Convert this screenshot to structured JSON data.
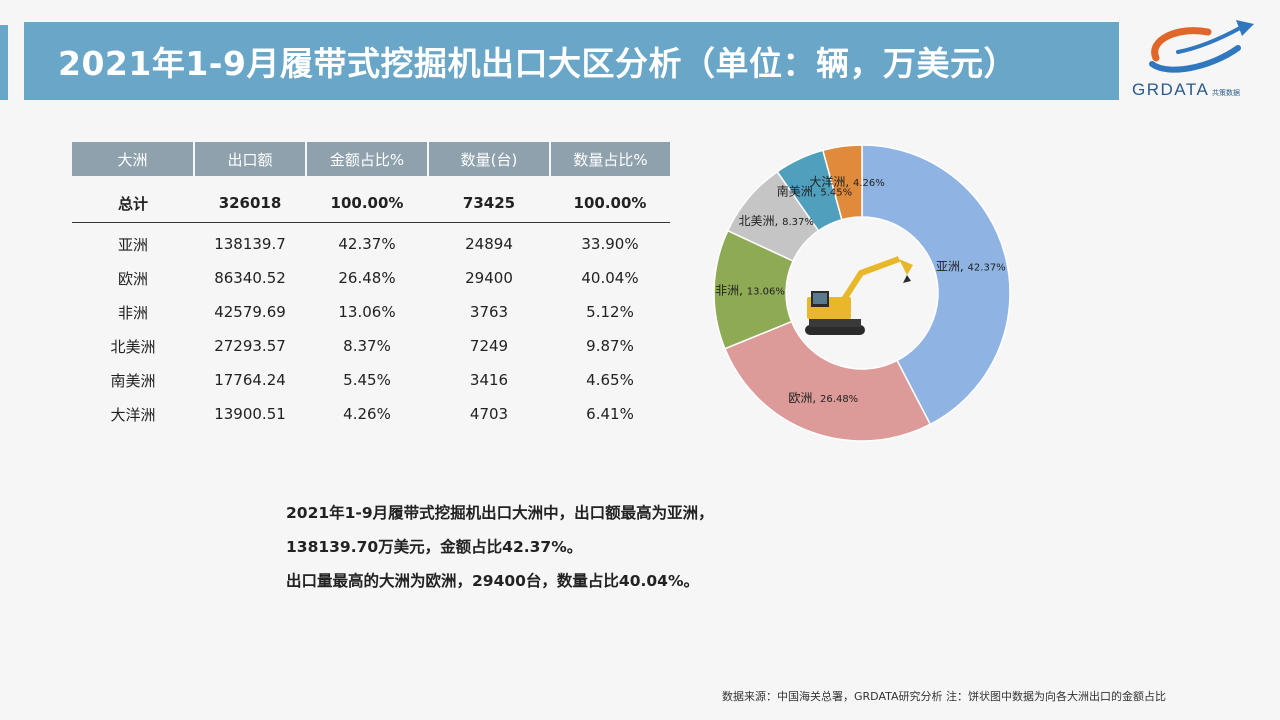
{
  "title": "2021年1-9月履带式挖掘机出口大区分析（单位：辆，万美元）",
  "logo": {
    "brand": "GRDATA",
    "sub": "共策数据"
  },
  "table": {
    "headers": [
      "大洲",
      "出口额",
      "金额占比%",
      "数量(台)",
      "数量占比%"
    ],
    "total": [
      "总计",
      "326018",
      "100.00%",
      "73425",
      "100.00%"
    ],
    "rows": [
      [
        "亚洲",
        "138139.7",
        "42.37%",
        "24894",
        "33.90%"
      ],
      [
        "欧洲",
        "86340.52",
        "26.48%",
        "29400",
        "40.04%"
      ],
      [
        "非洲",
        "42579.69",
        "13.06%",
        "3763",
        "5.12%"
      ],
      [
        "北美洲",
        "27293.57",
        "8.37%",
        "7249",
        "9.87%"
      ],
      [
        "南美洲",
        "17764.24",
        "5.45%",
        "3416",
        "4.65%"
      ],
      [
        "大洋洲",
        "13900.51",
        "4.26%",
        "4703",
        "6.41%"
      ]
    ]
  },
  "chart_data": {
    "type": "pie",
    "donut": true,
    "categories": [
      "亚洲",
      "欧洲",
      "非洲",
      "北美洲",
      "南美洲",
      "大洋洲"
    ],
    "values": [
      42.37,
      26.48,
      13.06,
      8.37,
      5.45,
      4.26
    ],
    "labels": [
      "亚洲, 42.37%",
      "欧洲, 26.48%",
      "非洲, 13.06%",
      "北美洲, 8.37%",
      "南美洲, 5.45%",
      "大洋洲, 4.26%"
    ],
    "colors": [
      "#8fb4e3",
      "#dc9a98",
      "#8faa55",
      "#c5c5c5",
      "#4f9fbd",
      "#e08a3c"
    ],
    "center_image": "excavator-icon"
  },
  "summary": [
    "2021年1-9月履带式挖掘机出口大洲中，出口额最高为亚洲，",
    "138139.70万美元，金额占比42.37%。",
    "出口量最高的大洲为欧洲，29400台，数量占比40.04%。"
  ],
  "source": "数据来源：中国海关总署，GRDATA研究分析  注：饼状图中数据为向各大洲出口的金额占比"
}
